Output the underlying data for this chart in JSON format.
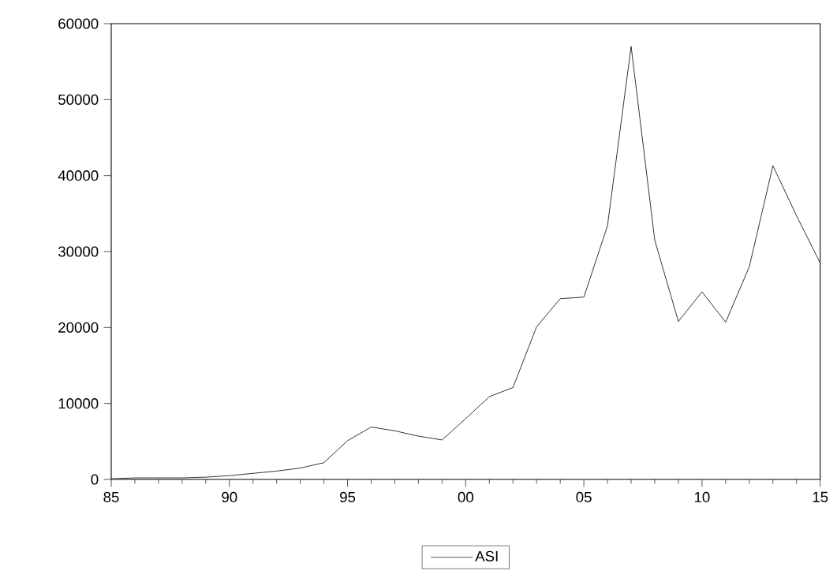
{
  "chart_data": {
    "type": "line",
    "x": [
      1985,
      1986,
      1987,
      1988,
      1989,
      1990,
      1991,
      1992,
      1993,
      1994,
      1995,
      1996,
      1997,
      1998,
      1999,
      2000,
      2001,
      2002,
      2003,
      2004,
      2005,
      2006,
      2007,
      2008,
      2009,
      2010,
      2011,
      2012,
      2013,
      2014,
      2015
    ],
    "series": [
      {
        "name": "ASI",
        "color": "#000000",
        "values": [
          100,
          200,
          200,
          200,
          300,
          500,
          800,
          1100,
          1500,
          2200,
          5100,
          6900,
          6400,
          5700,
          5200,
          8000,
          10900,
          12100,
          20100,
          23800,
          24000,
          33400,
          57000,
          31500,
          20800,
          24700,
          20700,
          28000,
          41300,
          34700,
          28500
        ]
      }
    ],
    "xlim": [
      1985,
      2015
    ],
    "ylim": [
      0,
      60000
    ],
    "xticks": [
      {
        "value": 1985,
        "label": "85"
      },
      {
        "value": 1990,
        "label": "90"
      },
      {
        "value": 1995,
        "label": "95"
      },
      {
        "value": 2000,
        "label": "00"
      },
      {
        "value": 2005,
        "label": "05"
      },
      {
        "value": 2010,
        "label": "10"
      },
      {
        "value": 2015,
        "label": "15"
      }
    ],
    "yticks": [
      0,
      10000,
      20000,
      30000,
      40000,
      50000,
      60000
    ],
    "legend": "bottom",
    "grid": false,
    "marker": "none",
    "line_style": "solid"
  }
}
